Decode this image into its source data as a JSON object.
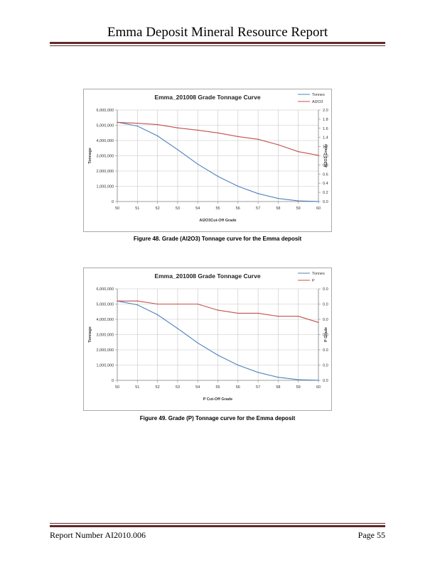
{
  "header": {
    "title": "Emma Deposit Mineral Resource Report"
  },
  "footer": {
    "left": "Report Number AI2010.006",
    "right": "Page 55"
  },
  "figures": [
    {
      "caption": "Figure 48. Grade (Al2O3) Tonnage curve for the Emma deposit"
    },
    {
      "caption": "Figure 49. Grade (P) Tonnage curve for the Emma deposit"
    }
  ],
  "colors": {
    "tonnes": "#4f81bd",
    "grade": "#c0504d",
    "rule": "#632a2a"
  },
  "chart_data": [
    {
      "type": "line",
      "title": "Emma_201008 Grade Tonnage Curve",
      "xlabel": "Al2O3Cut-Off Grade",
      "ylabel": "Tonnage",
      "y2label": "Al2O3 Grade",
      "x": [
        50,
        51,
        52,
        53,
        54,
        55,
        56,
        57,
        58,
        59,
        60
      ],
      "ylim": [
        0,
        6000000
      ],
      "yticks": [
        "0",
        "1,000,000",
        "2,000,000",
        "3,000,000",
        "4,000,000",
        "5,000,000",
        "6,000,000"
      ],
      "y2lim": [
        0,
        2.0
      ],
      "y2ticks": [
        "0.0",
        "0.2",
        "0.4",
        "0.6",
        "0.8",
        "1.0",
        "1.2",
        "1.4",
        "1.6",
        "1.8",
        "2.0"
      ],
      "grid": true,
      "legend": "top-right",
      "series": [
        {
          "name": "Tonnes",
          "axis": "left",
          "values": [
            5200000,
            4950000,
            4300000,
            3400000,
            2450000,
            1650000,
            1000000,
            520000,
            200000,
            40000,
            5000
          ]
        },
        {
          "name": "Al2O3",
          "axis": "right",
          "values": [
            1.73,
            1.71,
            1.68,
            1.61,
            1.56,
            1.5,
            1.42,
            1.36,
            1.24,
            1.09,
            1.01
          ]
        }
      ]
    },
    {
      "type": "line",
      "title": "Emma_201008 Grade Tonnage Curve",
      "xlabel": "P Cut-Off Grade",
      "ylabel": "Tonnage",
      "y2label": "P Grade",
      "x": [
        50,
        51,
        52,
        53,
        54,
        55,
        56,
        57,
        58,
        59,
        60
      ],
      "ylim": [
        0,
        6000000
      ],
      "yticks": [
        "0",
        "1,000,000",
        "2,000,000",
        "3,000,000",
        "4,000,000",
        "5,000,000",
        "6,000,000"
      ],
      "y2lim": [
        0,
        6
      ],
      "y2ticks": [
        "0.0",
        "0.0",
        "0.0",
        "0.0",
        "0.0",
        "0.0",
        "0.0"
      ],
      "grid": true,
      "legend": "top-right",
      "series": [
        {
          "name": "Tonnes",
          "axis": "left",
          "values": [
            5200000,
            4950000,
            4300000,
            3400000,
            2450000,
            1650000,
            1000000,
            520000,
            200000,
            40000,
            5000
          ]
        },
        {
          "name": "P",
          "axis": "right",
          "values": [
            5.2,
            5.2,
            5.0,
            5.0,
            5.0,
            4.6,
            4.4,
            4.4,
            4.2,
            4.2,
            3.8
          ]
        }
      ]
    }
  ]
}
